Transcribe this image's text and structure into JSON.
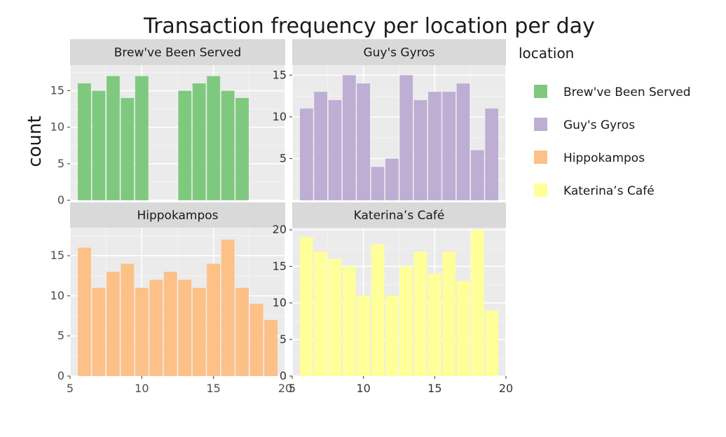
{
  "chart_data": {
    "type": "bar",
    "title": "Transaction frequency per location per day",
    "xlabel": "",
    "ylabel": "count",
    "grid": true,
    "legend": {
      "title": "location",
      "placement": "right",
      "entries": [
        {
          "label": "Brew've Been Served",
          "color": "#7fc97f"
        },
        {
          "label": "Guy's Gyros",
          "color": "#beaed4"
        },
        {
          "label": "Hippokampos",
          "color": "#fdc086"
        },
        {
          "label": "Katerina’s Café",
          "color": "#ffff99"
        }
      ]
    },
    "panels": [
      {
        "strip": "Brew've Been Served",
        "color": "#7fc97f",
        "xlim": [
          5,
          20
        ],
        "ylim": [
          0,
          18.5
        ],
        "xticks": [
          5,
          10,
          15,
          20
        ],
        "yticks": [
          0,
          5,
          10,
          15
        ],
        "x": [
          6,
          7,
          8,
          9,
          10,
          13,
          14,
          15,
          16,
          17
        ],
        "values": [
          16,
          15,
          17,
          14,
          17,
          15,
          16,
          17,
          15,
          14
        ]
      },
      {
        "strip": "Guy's Gyros",
        "color": "#beaed4",
        "xlim": [
          5,
          20
        ],
        "ylim": [
          0,
          16.2
        ],
        "xticks": [
          5,
          10,
          15,
          20
        ],
        "yticks": [
          5,
          10,
          15
        ],
        "x": [
          6,
          7,
          8,
          9,
          10,
          11,
          12,
          13,
          14,
          15,
          16,
          17,
          18,
          19
        ],
        "values": [
          11,
          13,
          12,
          15,
          14,
          4,
          5,
          15,
          12,
          13,
          13,
          14,
          6,
          11
        ]
      },
      {
        "strip": "Hippokampos",
        "color": "#fdc086",
        "xlim": [
          5,
          20
        ],
        "ylim": [
          0,
          18.5
        ],
        "xticks": [
          5,
          10,
          15,
          20
        ],
        "yticks": [
          0,
          5,
          10,
          15
        ],
        "x": [
          6,
          7,
          8,
          9,
          10,
          11,
          12,
          13,
          14,
          15,
          16,
          17,
          18,
          19
        ],
        "values": [
          16,
          11,
          13,
          14,
          11,
          12,
          13,
          12,
          11,
          14,
          17,
          11,
          9,
          7
        ]
      },
      {
        "strip": "Katerina’s Café",
        "color": "#ffff99",
        "xlim": [
          5,
          20
        ],
        "ylim": [
          0,
          20.3
        ],
        "xticks": [
          5,
          10,
          15,
          20
        ],
        "yticks": [
          0,
          5,
          10,
          15,
          20
        ],
        "x": [
          6,
          7,
          8,
          9,
          10,
          11,
          12,
          13,
          14,
          15,
          16,
          17,
          18,
          19
        ],
        "values": [
          19,
          17,
          16,
          15,
          11,
          18,
          11,
          15,
          17,
          14,
          17,
          13,
          20,
          9
        ]
      }
    ]
  }
}
